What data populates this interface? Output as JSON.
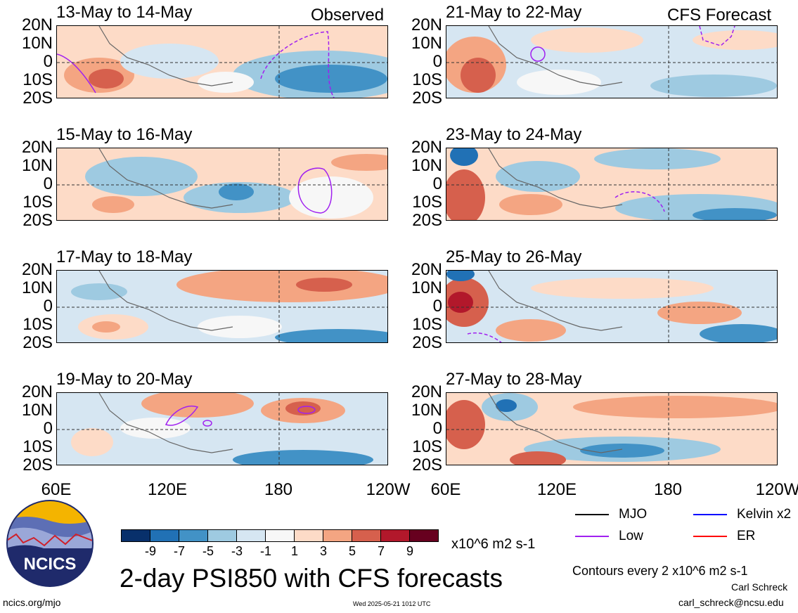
{
  "chart_data": {
    "type": "heatmap",
    "title": "2-day PSI850 with CFS forecasts",
    "units": "x10^6 m2 s-1",
    "contour_note": "Contours every 2 x10^6 m2 s-1",
    "lat_ticks": [
      "20N",
      "10N",
      "0",
      "10S",
      "20S"
    ],
    "lon_ticks": [
      "60E",
      "120E",
      "180",
      "120W"
    ],
    "colorbar": {
      "levels": [
        "-9",
        "-7",
        "-5",
        "-3",
        "-1",
        "1",
        "3",
        "5",
        "7",
        "9"
      ],
      "colors": [
        "#08306b",
        "#2171b5",
        "#4292c6",
        "#9ecae1",
        "#d6e6f2",
        "#f7f7f7",
        "#fddbc7",
        "#f4a582",
        "#d6604d",
        "#b2182b",
        "#67001f"
      ]
    },
    "legend": [
      {
        "label": "MJO",
        "color": "#000000"
      },
      {
        "label": "Kelvin x2",
        "color": "#0000ff"
      },
      {
        "label": "Low",
        "color": "#a020f0"
      },
      {
        "label": "ER",
        "color": "#ff0000"
      }
    ],
    "panels": [
      {
        "title": "13-May to 14-May",
        "tag": "Observed"
      },
      {
        "title": "21-May to 22-May",
        "tag": "CFS Forecast"
      },
      {
        "title": "15-May to 16-May",
        "tag": ""
      },
      {
        "title": "23-May to 24-May",
        "tag": ""
      },
      {
        "title": "17-May to 18-May",
        "tag": ""
      },
      {
        "title": "25-May to 26-May",
        "tag": ""
      },
      {
        "title": "19-May to 20-May",
        "tag": ""
      },
      {
        "title": "27-May to 28-May",
        "tag": ""
      }
    ]
  },
  "logo": {
    "text": "NCICS"
  },
  "footer": {
    "site": "ncics.org/mjo",
    "timestamp": "Wed 2025-05-21 1012 UTC",
    "author": "Carl Schreck",
    "email": "carl_schreck@ncsu.edu"
  }
}
